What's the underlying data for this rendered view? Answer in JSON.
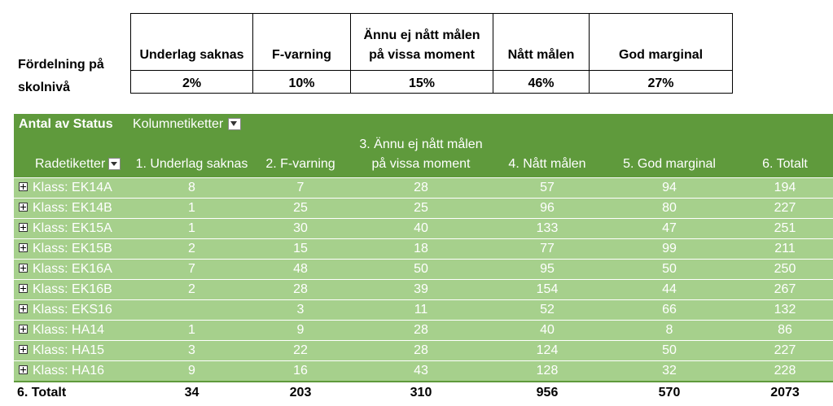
{
  "summary": {
    "label_line1": "Fördelning på",
    "label_line2": "skolnivå",
    "headers": [
      "Underlag saknas",
      "F-varning",
      "Ännu ej nått målen på vissa moment",
      "Nått målen",
      "God marginal"
    ],
    "values": [
      "2%",
      "10%",
      "15%",
      "46%",
      "27%"
    ]
  },
  "pivot": {
    "title": "Antal av Status",
    "col_labels_caption": "Kolumnetiketter",
    "row_labels_caption": "Radetiketter",
    "headers": [
      "1. Underlag saknas",
      "2. F-varning",
      "3. Ännu ej nått målen på vissa moment",
      "4. Nått målen",
      "5. God marginal",
      "6. Totalt"
    ],
    "rows": [
      {
        "label": "Klass: EK14A",
        "values": [
          "8",
          "7",
          "28",
          "57",
          "94",
          "194"
        ]
      },
      {
        "label": "Klass: EK14B",
        "values": [
          "1",
          "25",
          "25",
          "96",
          "80",
          "227"
        ]
      },
      {
        "label": "Klass: EK15A",
        "values": [
          "1",
          "30",
          "40",
          "133",
          "47",
          "251"
        ]
      },
      {
        "label": "Klass: EK15B",
        "values": [
          "2",
          "15",
          "18",
          "77",
          "99",
          "211"
        ]
      },
      {
        "label": "Klass: EK16A",
        "values": [
          "7",
          "48",
          "50",
          "95",
          "50",
          "250"
        ]
      },
      {
        "label": "Klass: EK16B",
        "values": [
          "2",
          "28",
          "39",
          "154",
          "44",
          "267"
        ]
      },
      {
        "label": "Klass: EKS16",
        "values": [
          "",
          "3",
          "11",
          "52",
          "66",
          "132"
        ]
      },
      {
        "label": "Klass: HA14",
        "values": [
          "1",
          "9",
          "28",
          "40",
          "8",
          "86"
        ]
      },
      {
        "label": "Klass: HA15",
        "values": [
          "3",
          "22",
          "28",
          "124",
          "50",
          "227"
        ]
      },
      {
        "label": "Klass: HA16",
        "values": [
          "9",
          "16",
          "43",
          "128",
          "32",
          "228"
        ]
      }
    ],
    "total": {
      "label": "6. Totalt",
      "values": [
        "34",
        "203",
        "310",
        "956",
        "570",
        "2073"
      ]
    }
  }
}
